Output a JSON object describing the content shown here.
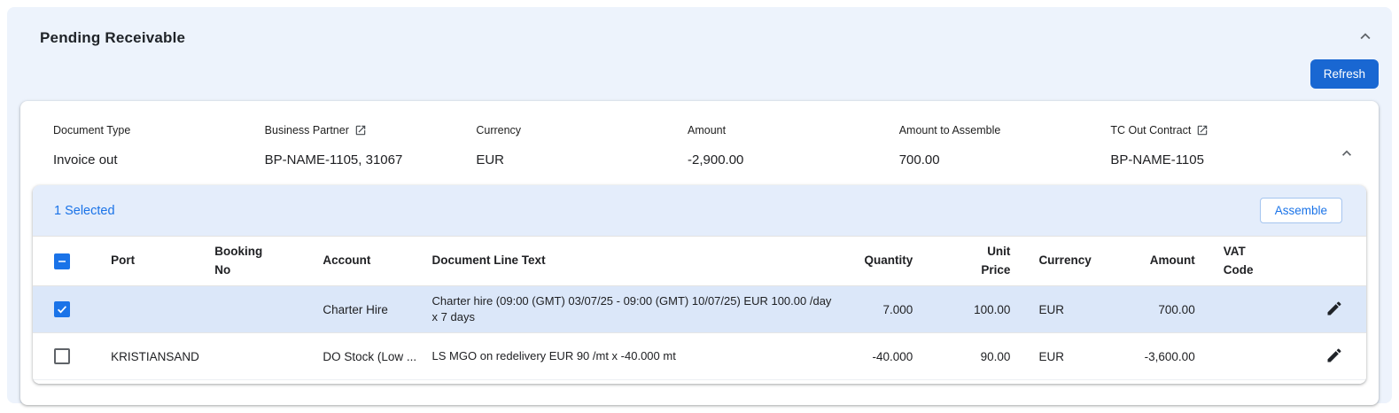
{
  "panel": {
    "title": "Pending Receivable",
    "refresh_label": "Refresh"
  },
  "summary": {
    "fields": [
      {
        "label": "Document Type",
        "value": "Invoice out",
        "link_icon": false
      },
      {
        "label": "Business Partner",
        "value": "BP-NAME-1105, 31067",
        "link_icon": true
      },
      {
        "label": "Currency",
        "value": "EUR",
        "link_icon": false
      },
      {
        "label": "Amount",
        "value": "-2,900.00",
        "link_icon": false
      },
      {
        "label": "Amount to Assemble",
        "value": "700.00",
        "link_icon": false
      },
      {
        "label": "TC Out Contract",
        "value": "BP-NAME-1105",
        "link_icon": true
      }
    ]
  },
  "toolbar": {
    "selected_text": "1 Selected",
    "assemble_label": "Assemble"
  },
  "table": {
    "columns": [
      {
        "key": "select",
        "label": "",
        "align": "center"
      },
      {
        "key": "port",
        "label": "Port",
        "align": "left"
      },
      {
        "key": "booking_no",
        "label": "Booking No",
        "align": "left"
      },
      {
        "key": "account",
        "label": "Account",
        "align": "left"
      },
      {
        "key": "document_line_text",
        "label": "Document Line Text",
        "align": "left"
      },
      {
        "key": "quantity",
        "label": "Quantity",
        "align": "right"
      },
      {
        "key": "unit_price",
        "label": "Unit Price",
        "align": "right"
      },
      {
        "key": "currency",
        "label": "Currency",
        "align": "left"
      },
      {
        "key": "amount",
        "label": "Amount",
        "align": "right"
      },
      {
        "key": "vat_code",
        "label": "VAT Code",
        "align": "left"
      },
      {
        "key": "edit",
        "label": "",
        "align": "right"
      }
    ],
    "select_all_state": "indeterminate",
    "rows": [
      {
        "selected": true,
        "port": "",
        "booking_no": "",
        "account": "Charter Hire",
        "document_line_text": "Charter hire (09:00 (GMT) 03/07/25 - 09:00 (GMT) 10/07/25) EUR 100.00 /day x 7 days",
        "quantity": "7.000",
        "unit_price": "100.00",
        "currency": "EUR",
        "amount": "700.00",
        "vat_code": ""
      },
      {
        "selected": false,
        "port": "KRISTIANSAND",
        "booking_no": "",
        "account": "DO Stock (Low ...",
        "document_line_text": "LS MGO on redelivery EUR 90 /mt x -40.000 mt",
        "quantity": "-40.000",
        "unit_price": "90.00",
        "currency": "EUR",
        "amount": "-3,600.00",
        "vat_code": ""
      }
    ]
  },
  "colors": {
    "accent_blue": "#1a73e8",
    "refresh_button_blue": "#1967d2",
    "panel_background": "#edf3fc",
    "toolbar_background": "#e4edfb",
    "selected_row_background": "#dbe7f9"
  }
}
